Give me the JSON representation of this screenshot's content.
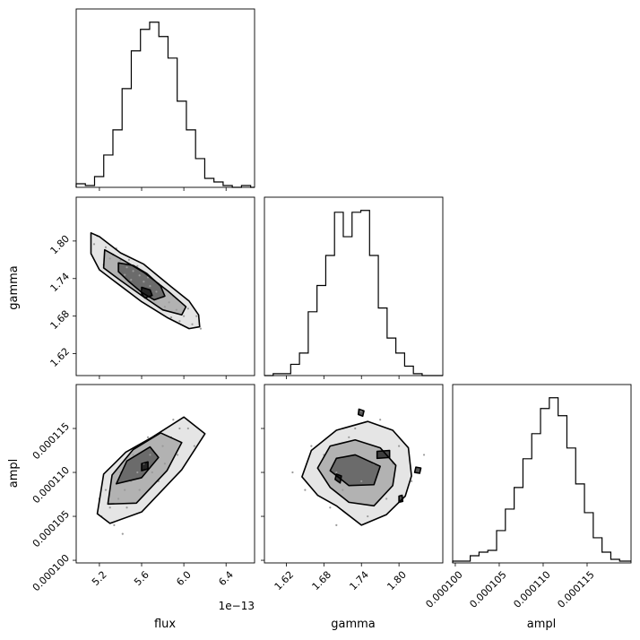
{
  "figure": {
    "colors": {
      "ink": "#000000",
      "background": "#ffffff",
      "density": "#000000"
    }
  },
  "chart_data": {
    "type": "corner",
    "parameters": [
      "flux",
      "gamma",
      "ampl"
    ],
    "grid": false,
    "axis_labels": {
      "flux": "flux",
      "gamma": "gamma",
      "ampl": "ampl"
    },
    "flux_offset_text": "1e−13",
    "ticks": {
      "flux": {
        "values": [
          5.2,
          5.6,
          6.0,
          6.4
        ],
        "labels": [
          "5.2",
          "5.6",
          "6.0",
          "6.4"
        ]
      },
      "gamma": {
        "values": [
          1.62,
          1.68,
          1.74,
          1.8
        ],
        "labels": [
          "1.62",
          "1.68",
          "1.74",
          "1.80"
        ]
      },
      "ampl": {
        "values": [
          0.0001,
          0.000105,
          0.00011,
          0.000115
        ],
        "labels": [
          "0.000100",
          "0.000105",
          "0.000110",
          "0.000115"
        ]
      }
    },
    "ranges": {
      "flux": [
        4.98,
        6.67
      ],
      "gamma": [
        1.585,
        1.87
      ],
      "ampl": [
        9.97e-05,
        0.00012
      ]
    },
    "histograms": {
      "flux": {
        "edges": [
          4.98,
          5.067,
          5.154,
          5.241,
          5.328,
          5.415,
          5.502,
          5.589,
          5.676,
          5.763,
          5.85,
          5.937,
          6.024,
          6.111,
          6.198,
          6.285,
          6.372,
          6.459,
          6.546,
          6.633,
          6.67
        ],
        "counts": [
          2,
          1,
          6,
          18,
          32,
          55,
          76,
          88,
          92,
          84,
          72,
          48,
          32,
          16,
          5,
          3,
          1,
          0,
          1,
          0
        ]
      },
      "gamma": {
        "edges": [
          1.585,
          1.599,
          1.613,
          1.627,
          1.641,
          1.655,
          1.669,
          1.683,
          1.697,
          1.711,
          1.725,
          1.739,
          1.753,
          1.767,
          1.781,
          1.795,
          1.809,
          1.823,
          1.837,
          1.851,
          1.87
        ],
        "counts": [
          0,
          1,
          1,
          6,
          12,
          34,
          48,
          64,
          87,
          74,
          87,
          88,
          64,
          36,
          20,
          12,
          5,
          1,
          0,
          0
        ]
      },
      "ampl": {
        "edges": [
          9.97e-05,
          0.0001007,
          0.0001017,
          0.0001027,
          0.0001037,
          0.0001047,
          0.0001057,
          0.0001067,
          0.0001077,
          0.0001087,
          0.0001097,
          0.0001107,
          0.0001117,
          0.0001127,
          0.0001137,
          0.0001147,
          0.0001157,
          0.0001167,
          0.0001177,
          0.0001187,
          0.00012
        ],
        "counts": [
          1,
          1,
          4,
          6,
          7,
          18,
          30,
          42,
          58,
          72,
          86,
          92,
          82,
          64,
          44,
          28,
          14,
          6,
          2,
          1
        ]
      }
    },
    "pairs": [
      {
        "x": "flux",
        "y": "gamma",
        "points": [
          [
            5.18,
            1.808
          ],
          [
            5.26,
            1.79
          ],
          [
            5.33,
            1.778
          ],
          [
            5.4,
            1.769
          ],
          [
            5.46,
            1.758
          ],
          [
            5.52,
            1.752
          ],
          [
            5.58,
            1.745
          ],
          [
            5.62,
            1.735
          ],
          [
            5.68,
            1.728
          ],
          [
            5.74,
            1.719
          ],
          [
            5.8,
            1.71
          ],
          [
            5.86,
            1.702
          ],
          [
            5.93,
            1.69
          ],
          [
            6.0,
            1.68
          ],
          [
            6.08,
            1.667
          ],
          [
            5.3,
            1.772
          ],
          [
            5.44,
            1.746
          ],
          [
            5.5,
            1.738
          ],
          [
            5.56,
            1.76
          ],
          [
            5.6,
            1.72
          ],
          [
            5.66,
            1.742
          ],
          [
            5.7,
            1.708
          ],
          [
            5.76,
            1.732
          ],
          [
            5.82,
            1.695
          ],
          [
            5.9,
            1.712
          ],
          [
            5.96,
            1.672
          ],
          [
            6.04,
            1.692
          ],
          [
            5.24,
            1.762
          ],
          [
            5.36,
            1.788
          ],
          [
            6.12,
            1.68
          ],
          [
            5.15,
            1.795
          ],
          [
            6.16,
            1.66
          ],
          [
            5.48,
            1.77
          ],
          [
            5.88,
            1.678
          ]
        ],
        "contours": [
          [
            [
              5.12,
              1.813
            ],
            [
              5.2,
              1.807
            ],
            [
              5.4,
              1.781
            ],
            [
              5.62,
              1.763
            ],
            [
              5.88,
              1.727
            ],
            [
              6.05,
              1.704
            ],
            [
              6.14,
              1.682
            ],
            [
              6.15,
              1.663
            ],
            [
              6.05,
              1.66
            ],
            [
              5.85,
              1.677
            ],
            [
              5.6,
              1.703
            ],
            [
              5.38,
              1.731
            ],
            [
              5.2,
              1.754
            ],
            [
              5.12,
              1.78
            ],
            [
              5.12,
              1.813
            ]
          ],
          [
            [
              5.25,
              1.786
            ],
            [
              5.43,
              1.769
            ],
            [
              5.62,
              1.75
            ],
            [
              5.85,
              1.72
            ],
            [
              6.02,
              1.695
            ],
            [
              5.98,
              1.682
            ],
            [
              5.8,
              1.69
            ],
            [
              5.6,
              1.713
            ],
            [
              5.4,
              1.737
            ],
            [
              5.24,
              1.757
            ],
            [
              5.25,
              1.786
            ]
          ],
          [
            [
              5.38,
              1.765
            ],
            [
              5.52,
              1.761
            ],
            [
              5.65,
              1.748
            ],
            [
              5.78,
              1.728
            ],
            [
              5.82,
              1.712
            ],
            [
              5.72,
              1.706
            ],
            [
              5.6,
              1.718
            ],
            [
              5.48,
              1.735
            ],
            [
              5.38,
              1.751
            ],
            [
              5.38,
              1.765
            ]
          ],
          [
            [
              5.6,
              1.726
            ],
            [
              5.68,
              1.722
            ],
            [
              5.7,
              1.713
            ],
            [
              5.63,
              1.709
            ],
            [
              5.6,
              1.716
            ],
            [
              5.6,
              1.726
            ]
          ]
        ]
      },
      {
        "x": "flux",
        "y": "ampl",
        "points": [
          [
            5.22,
            0.000105
          ],
          [
            5.3,
            0.000106
          ],
          [
            5.38,
            0.000107
          ],
          [
            5.44,
            0.000108
          ],
          [
            5.5,
            0.000109
          ],
          [
            5.56,
            0.00011
          ],
          [
            5.62,
            0.000111
          ],
          [
            5.68,
            0.000112
          ],
          [
            5.74,
            0.000112
          ],
          [
            5.8,
            0.000113
          ],
          [
            5.88,
            0.000114
          ],
          [
            5.96,
            0.000115
          ],
          [
            6.04,
            0.000115
          ],
          [
            5.34,
            0.000104
          ],
          [
            5.46,
            0.000106
          ],
          [
            5.58,
            0.000108
          ],
          [
            5.7,
            0.00011
          ],
          [
            5.82,
            0.000111
          ],
          [
            5.94,
            0.000112
          ],
          [
            5.26,
            0.000108
          ],
          [
            5.4,
            0.00011
          ],
          [
            5.52,
            0.000112
          ],
          [
            5.66,
            0.000114
          ],
          [
            6.1,
            0.000113
          ],
          [
            5.42,
            0.000103
          ],
          [
            5.9,
            0.000116
          ],
          [
            5.2,
            0.000107
          ],
          [
            5.76,
            0.000109
          ]
        ],
        "contours": [
          [
            [
              5.18,
              0.0001053
            ],
            [
              5.3,
              0.0001042
            ],
            [
              5.6,
              0.0001055
            ],
            [
              5.98,
              0.0001103
            ],
            [
              6.2,
              0.0001144
            ],
            [
              6.0,
              0.0001163
            ],
            [
              5.7,
              0.000114
            ],
            [
              5.45,
              0.0001123
            ],
            [
              5.24,
              0.0001098
            ],
            [
              5.18,
              0.0001053
            ]
          ],
          [
            [
              5.28,
              0.0001064
            ],
            [
              5.55,
              0.0001065
            ],
            [
              5.84,
              0.0001102
            ],
            [
              5.98,
              0.0001134
            ],
            [
              5.78,
              0.0001145
            ],
            [
              5.52,
              0.0001126
            ],
            [
              5.32,
              0.0001097
            ],
            [
              5.28,
              0.0001064
            ]
          ],
          [
            [
              5.36,
              0.0001087
            ],
            [
              5.6,
              0.0001094
            ],
            [
              5.76,
              0.0001117
            ],
            [
              5.68,
              0.0001129
            ],
            [
              5.46,
              0.0001113
            ],
            [
              5.36,
              0.0001087
            ]
          ],
          [
            [
              5.6,
              0.0001102
            ],
            [
              5.66,
              0.0001104
            ],
            [
              5.66,
              0.0001112
            ],
            [
              5.6,
              0.000111
            ],
            [
              5.6,
              0.0001102
            ]
          ]
        ]
      },
      {
        "x": "gamma",
        "y": "ampl",
        "points": [
          [
            1.65,
            0.000108
          ],
          [
            1.68,
            0.000112
          ],
          [
            1.7,
            0.00011
          ],
          [
            1.72,
            0.000114
          ],
          [
            1.74,
            0.000109
          ],
          [
            1.76,
            0.000111
          ],
          [
            1.78,
            0.000107
          ],
          [
            1.8,
            0.000113
          ],
          [
            1.69,
            0.000106
          ],
          [
            1.73,
            0.000115
          ],
          [
            1.75,
            0.000105
          ],
          [
            1.77,
            0.000116
          ],
          [
            1.82,
            0.000109
          ],
          [
            1.66,
            0.000113
          ],
          [
            1.71,
            0.000108
          ],
          [
            1.79,
            0.000111
          ],
          [
            1.84,
            0.000112
          ],
          [
            1.63,
            0.00011
          ],
          [
            1.74,
            0.000117
          ],
          [
            1.7,
            0.000104
          ]
        ],
        "contours": [
          [
            [
              1.645,
              0.0001095
            ],
            [
              1.67,
              0.0001074
            ],
            [
              1.7,
              0.0001062
            ],
            [
              1.74,
              0.000104
            ],
            [
              1.78,
              0.0001052
            ],
            [
              1.81,
              0.0001073
            ],
            [
              1.82,
              0.0001096
            ],
            [
              1.815,
              0.0001128
            ],
            [
              1.79,
              0.0001148
            ],
            [
              1.75,
              0.0001158
            ],
            [
              1.7,
              0.0001148
            ],
            [
              1.66,
              0.0001125
            ],
            [
              1.645,
              0.0001095
            ]
          ],
          [
            [
              1.67,
              0.0001105
            ],
            [
              1.69,
              0.0001083
            ],
            [
              1.72,
              0.0001066
            ],
            [
              1.76,
              0.0001062
            ],
            [
              1.79,
              0.0001085
            ],
            [
              1.795,
              0.0001108
            ],
            [
              1.77,
              0.0001128
            ],
            [
              1.73,
              0.0001137
            ],
            [
              1.69,
              0.000113
            ],
            [
              1.67,
              0.0001105
            ]
          ],
          [
            [
              1.69,
              0.0001102
            ],
            [
              1.72,
              0.0001085
            ],
            [
              1.76,
              0.0001086
            ],
            [
              1.77,
              0.0001107
            ],
            [
              1.73,
              0.000112
            ],
            [
              1.7,
              0.0001116
            ],
            [
              1.69,
              0.0001102
            ]
          ],
          [
            [
              1.698,
              0.0001092
            ],
            [
              1.706,
              0.0001088
            ],
            [
              1.708,
              0.0001096
            ],
            [
              1.7,
              0.0001098
            ],
            [
              1.698,
              0.0001092
            ]
          ],
          [
            [
              1.765,
              0.0001116
            ],
            [
              1.785,
              0.0001117
            ],
            [
              1.785,
              0.0001125
            ],
            [
              1.765,
              0.0001124
            ],
            [
              1.765,
              0.0001116
            ]
          ],
          [
            [
              1.735,
              0.0001166
            ],
            [
              1.742,
              0.0001164
            ],
            [
              1.744,
              0.000117
            ],
            [
              1.736,
              0.0001172
            ],
            [
              1.735,
              0.0001166
            ]
          ],
          [
            [
              1.825,
              0.00011
            ],
            [
              1.833,
              0.0001099
            ],
            [
              1.835,
              0.0001105
            ],
            [
              1.827,
              0.0001106
            ],
            [
              1.825,
              0.00011
            ]
          ],
          [
            [
              1.8,
              0.0001066
            ],
            [
              1.806,
              0.0001067
            ],
            [
              1.805,
              0.0001074
            ],
            [
              1.8,
              0.0001073
            ],
            [
              1.8,
              0.0001066
            ]
          ]
        ]
      }
    ]
  }
}
